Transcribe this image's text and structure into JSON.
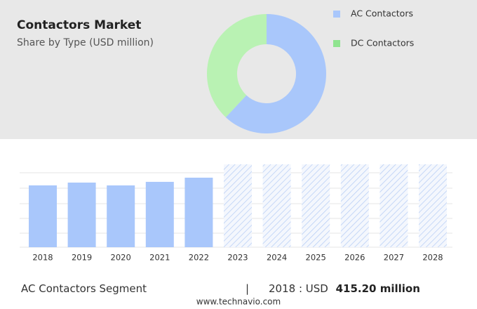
{
  "header": {
    "title": "Contactors Market",
    "subtitle": "Share by Type (USD million)"
  },
  "chart_data": [
    {
      "type": "donut",
      "categories": [
        "AC Contactors",
        "DC Contactors"
      ],
      "values": [
        62,
        38
      ],
      "colors": [
        "#a9c7fb",
        "#b9f2b3"
      ],
      "legend_colors": [
        "#a9c7fb",
        "#8fe48f"
      ]
    },
    {
      "type": "bar",
      "categories": [
        "2018",
        "2019",
        "2020",
        "2021",
        "2022",
        "2023",
        "2024",
        "2025",
        "2026",
        "2027",
        "2028"
      ],
      "values": [
        415.2,
        434,
        415,
        439,
        467,
        null,
        null,
        null,
        null,
        null,
        null
      ],
      "color": "#a9c7fb"
    }
  ],
  "footer": {
    "segment": "AC Contactors Segment",
    "separator": "|",
    "year_label": "2018 : USD",
    "value_text": "415.20 million",
    "source": "www.technavio.com"
  }
}
